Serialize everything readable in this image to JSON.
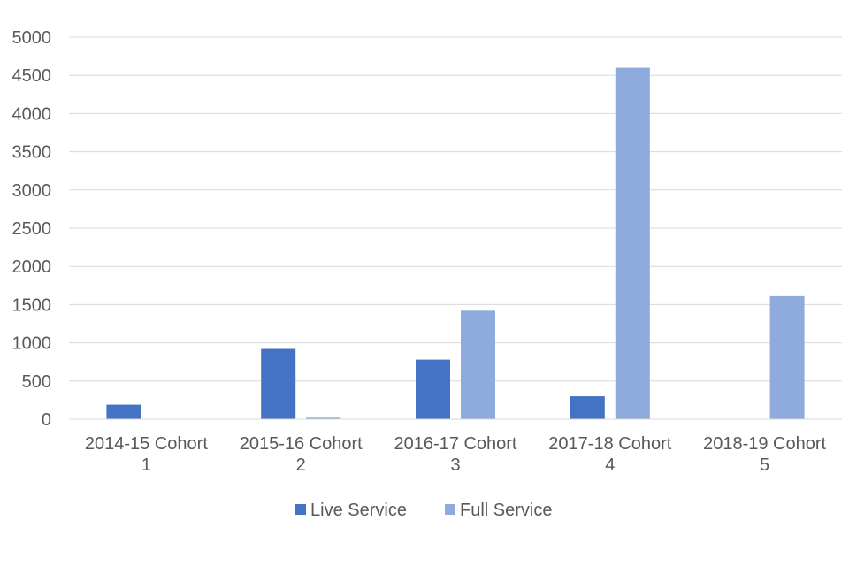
{
  "chart_data": {
    "type": "bar",
    "categories": [
      [
        "2014-15 Cohort",
        "1"
      ],
      [
        "2015-16 Cohort",
        "2"
      ],
      [
        "2016-17 Cohort",
        "3"
      ],
      [
        "2017-18 Cohort",
        "4"
      ],
      [
        "2018-19 Cohort",
        "5"
      ]
    ],
    "series": [
      {
        "name": "Live Service",
        "color": "#4472c4",
        "values": [
          190,
          920,
          780,
          300,
          0
        ]
      },
      {
        "name": "Full Service",
        "color": "#8faadc",
        "values": [
          0,
          20,
          1420,
          4600,
          1610
        ]
      }
    ],
    "ylim": [
      0,
      5000
    ],
    "yticks": [
      "0",
      "500",
      "1000",
      "1500",
      "2000",
      "2500",
      "3000",
      "3500",
      "4000",
      "4500",
      "5000"
    ],
    "grid": true,
    "legend_position": "bottom"
  }
}
